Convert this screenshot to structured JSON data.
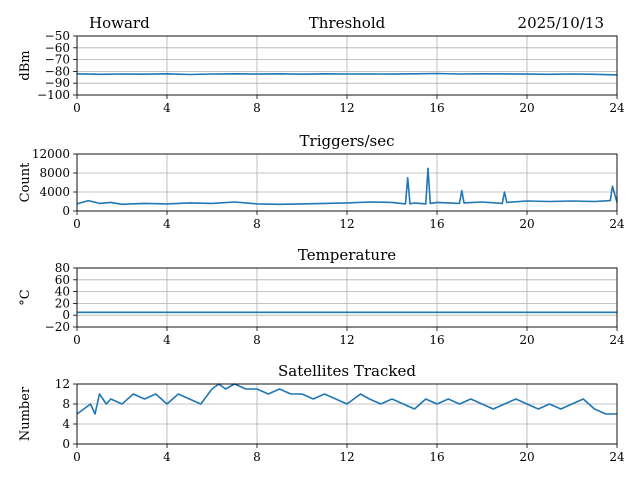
{
  "header": {
    "station": "Howard",
    "date": "2025/10/13"
  },
  "chart_data": [
    {
      "type": "line",
      "title": "Threshold",
      "ylabel": "dBm",
      "xlim": [
        0,
        24
      ],
      "ylim": [
        -100,
        -50
      ],
      "xticks": [
        0,
        4,
        8,
        12,
        16,
        20,
        24
      ],
      "yticks": [
        -50,
        -60,
        -70,
        -80,
        -90,
        -100
      ],
      "ytick_labels": [
        "−50",
        "−60",
        "−70",
        "−80",
        "−90",
        "−100"
      ],
      "grid": true,
      "series": [
        {
          "x": [
            0,
            1,
            2,
            3,
            4,
            5,
            6,
            7,
            8,
            9,
            10,
            11,
            12,
            13,
            14,
            15,
            16,
            17,
            18,
            19,
            20,
            21,
            22,
            23,
            24
          ],
          "values": [
            -82,
            -82.5,
            -82.2,
            -82.4,
            -82,
            -82.6,
            -82.2,
            -82,
            -82.3,
            -82,
            -82.4,
            -82,
            -82.2,
            -82.1,
            -82.3,
            -82,
            -81.8,
            -82.2,
            -82,
            -82.1,
            -82.3,
            -82.5,
            -82.2,
            -82.5,
            -83
          ]
        }
      ],
      "color": "#1f77b4"
    },
    {
      "type": "line",
      "title": "Triggers/sec",
      "ylabel": "Count",
      "xlim": [
        0,
        24
      ],
      "ylim": [
        0,
        12000
      ],
      "xticks": [
        0,
        4,
        8,
        12,
        16,
        20,
        24
      ],
      "yticks": [
        0,
        4000,
        8000,
        12000
      ],
      "ytick_labels": [
        "0",
        "4000",
        "8000",
        "12000"
      ],
      "grid": true,
      "series": [
        {
          "x": [
            0,
            0.5,
            1,
            1.5,
            2,
            3,
            4,
            5,
            6,
            7,
            8,
            9,
            10,
            11,
            12,
            13,
            14,
            14.6,
            14.7,
            14.8,
            15,
            15.5,
            15.6,
            15.7,
            16,
            17,
            17.1,
            17.2,
            18,
            18.9,
            19,
            19.1,
            20,
            21,
            22,
            23,
            23.7,
            23.8,
            24
          ],
          "values": [
            1500,
            2200,
            1600,
            1800,
            1400,
            1600,
            1500,
            1700,
            1600,
            1900,
            1500,
            1400,
            1500,
            1600,
            1700,
            1900,
            1800,
            1500,
            7000,
            1500,
            1700,
            1500,
            9000,
            1600,
            1800,
            1600,
            4300,
            1700,
            1900,
            1600,
            4000,
            1800,
            2100,
            2000,
            2100,
            2000,
            2200,
            5200,
            1800
          ]
        }
      ],
      "color": "#1f77b4"
    },
    {
      "type": "line",
      "title": "Temperature",
      "ylabel": "°C",
      "xlim": [
        0,
        24
      ],
      "ylim": [
        -20,
        80
      ],
      "xticks": [
        0,
        4,
        8,
        12,
        16,
        20,
        24
      ],
      "yticks": [
        -20,
        0,
        20,
        40,
        60,
        80
      ],
      "ytick_labels": [
        "−20",
        "0",
        "20",
        "40",
        "60",
        "80"
      ],
      "grid": true,
      "series": [
        {
          "x": [
            0,
            24
          ],
          "values": [
            5,
            5
          ]
        }
      ],
      "color": "#1f77b4"
    },
    {
      "type": "line",
      "title": "Satellites Tracked",
      "ylabel": "Number",
      "xlim": [
        0,
        24
      ],
      "ylim": [
        0,
        12
      ],
      "xticks": [
        0,
        4,
        8,
        12,
        16,
        20,
        24
      ],
      "yticks": [
        0,
        4,
        8,
        12
      ],
      "ytick_labels": [
        "0",
        "4",
        "8",
        "12"
      ],
      "grid": true,
      "series": [
        {
          "x": [
            0,
            0.3,
            0.6,
            0.8,
            1,
            1.3,
            1.5,
            2,
            2.5,
            3,
            3.5,
            4,
            4.5,
            5,
            5.5,
            6,
            6.3,
            6.6,
            7,
            7.5,
            8,
            8.5,
            9,
            9.5,
            10,
            10.5,
            11,
            11.5,
            12,
            12.3,
            12.6,
            13,
            13.5,
            14,
            14.5,
            15,
            15.5,
            16,
            16.5,
            17,
            17.5,
            18,
            18.5,
            19,
            19.5,
            20,
            20.5,
            21,
            21.5,
            22,
            22.5,
            23,
            23.5,
            24
          ],
          "values": [
            6,
            7,
            8,
            6,
            10,
            8,
            9,
            8,
            10,
            9,
            10,
            8,
            10,
            9,
            8,
            11,
            12,
            11,
            12,
            11,
            11,
            10,
            11,
            10,
            10,
            9,
            10,
            9,
            8,
            9,
            10,
            9,
            8,
            9,
            8,
            7,
            9,
            8,
            9,
            8,
            9,
            8,
            7,
            8,
            9,
            8,
            7,
            8,
            7,
            8,
            9,
            7,
            6,
            6
          ]
        }
      ],
      "color": "#1f77b4"
    }
  ]
}
